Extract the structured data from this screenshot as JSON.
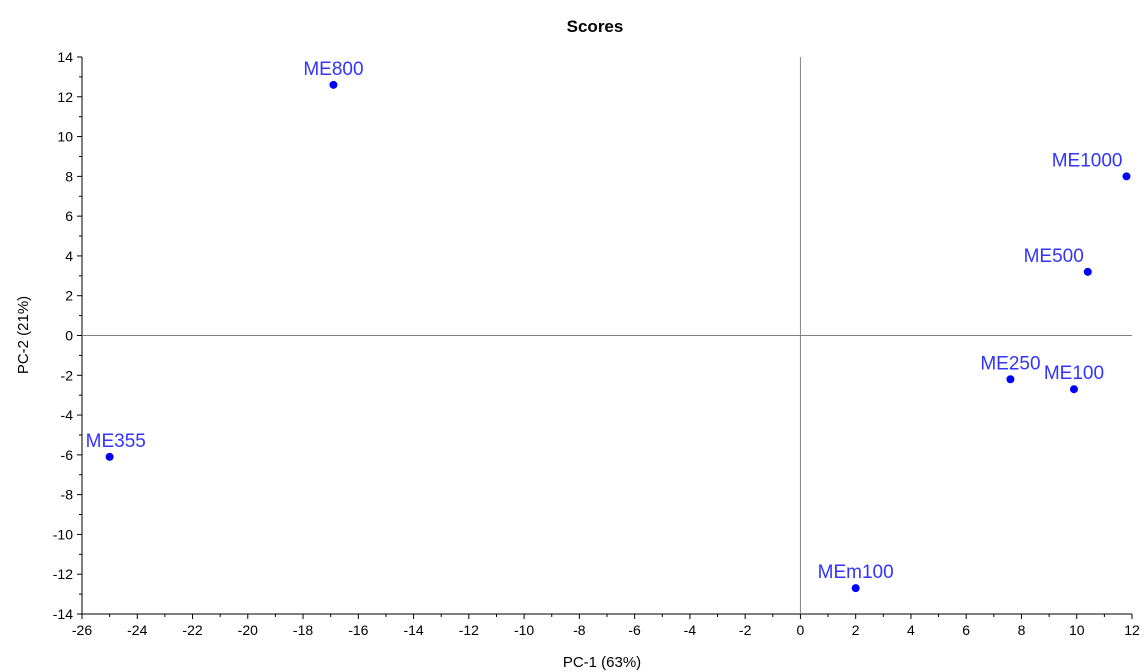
{
  "chart_data": {
    "type": "scatter",
    "title": "Scores",
    "xlabel": "PC-1 (63%)",
    "ylabel": "PC-2 (21%)",
    "xlim": [
      -26,
      12
    ],
    "ylim": [
      -14,
      14
    ],
    "xticks": [
      -26,
      -24,
      -22,
      -20,
      -18,
      -16,
      -14,
      -12,
      -10,
      -8,
      -6,
      -4,
      -2,
      0,
      2,
      4,
      6,
      8,
      10,
      12
    ],
    "yticks": [
      -14,
      -12,
      -10,
      -8,
      -6,
      -4,
      -2,
      0,
      2,
      4,
      6,
      8,
      10,
      12,
      14
    ],
    "grid": false,
    "zero_lines": true,
    "point_color": "#0000ff",
    "label_color": "#3333ff",
    "points": [
      {
        "label": "ME800",
        "x": -16.9,
        "y": 12.6
      },
      {
        "label": "ME1000",
        "x": 11.8,
        "y": 8.0
      },
      {
        "label": "ME500",
        "x": 10.4,
        "y": 3.2
      },
      {
        "label": "ME250",
        "x": 7.6,
        "y": -2.2
      },
      {
        "label": "ME100",
        "x": 9.9,
        "y": -2.7
      },
      {
        "label": "ME355",
        "x": -25.0,
        "y": -6.1
      },
      {
        "label": "MEm100",
        "x": 2.0,
        "y": -12.7
      }
    ]
  }
}
